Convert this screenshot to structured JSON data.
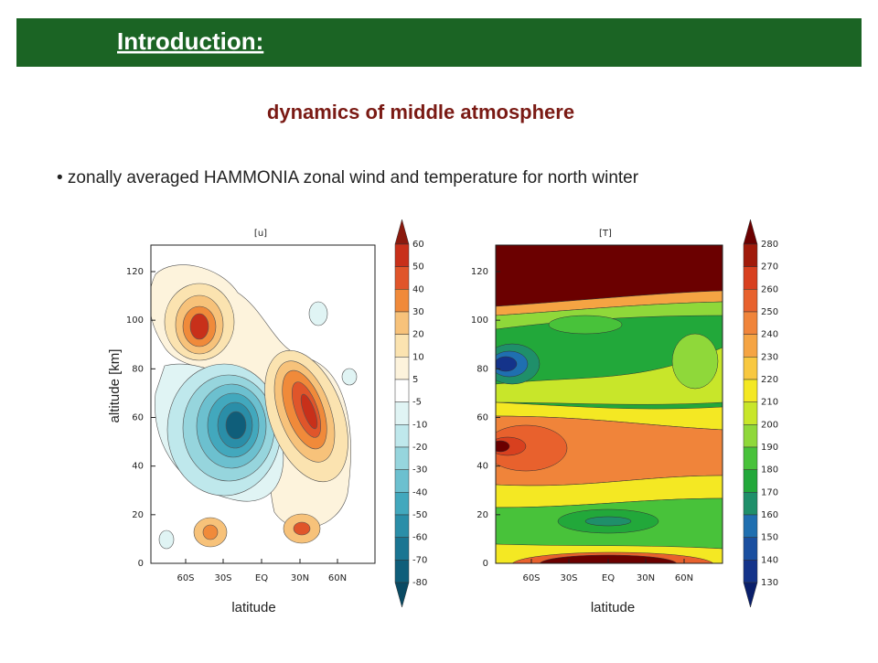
{
  "header": {
    "title": "Introduction:"
  },
  "subtitle": "dynamics of middle atmosphere",
  "bullet": "• zonally averaged HAMMONIA zonal wind and temperature for north winter",
  "y_label": "altitude [km]",
  "plots": [
    {
      "title": "[u]",
      "y_ticks": [
        0,
        20,
        40,
        60,
        80,
        100,
        120
      ],
      "x_ticks": [
        "60S",
        "30S",
        "EQ",
        "30N",
        "60N"
      ],
      "colorbar": [
        60,
        50,
        40,
        30,
        20,
        10,
        5,
        -5,
        -10,
        -20,
        -30,
        -40,
        -50,
        -60,
        -70,
        -80
      ],
      "x_label": "latitude"
    },
    {
      "title": "[T]",
      "y_ticks": [
        0,
        20,
        40,
        60,
        80,
        100,
        120
      ],
      "x_ticks": [
        "60S",
        "30S",
        "EQ",
        "30N",
        "60N"
      ],
      "colorbar": [
        280,
        270,
        260,
        250,
        240,
        230,
        220,
        210,
        200,
        190,
        180,
        170,
        160,
        150,
        140,
        130
      ],
      "x_label": "latitude"
    }
  ]
}
